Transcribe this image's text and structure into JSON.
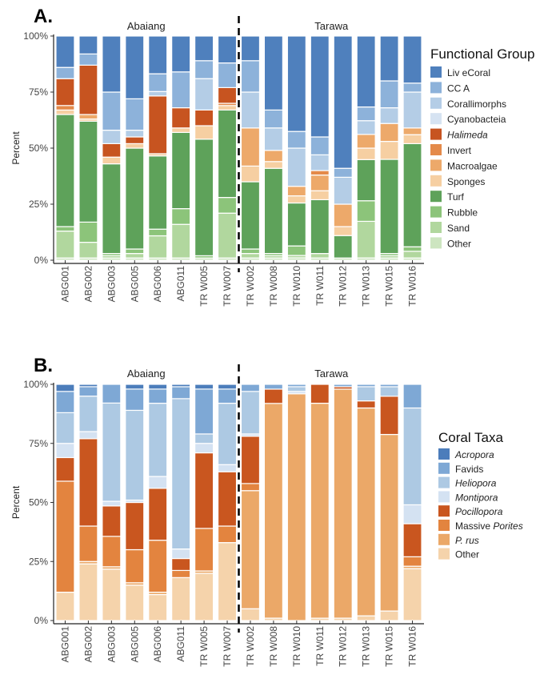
{
  "panels": [
    {
      "panel_label": "A.",
      "chart_data": {
        "type": "bar",
        "stacked": true,
        "categories": [
          "ABG001",
          "ABG002",
          "ABG003",
          "ABG005",
          "ABG006",
          "ABG011",
          "TR W005",
          "TR W007",
          "TR W002",
          "TR W008",
          "TR W010",
          "TR W011",
          "TR W012",
          "TR W013",
          "TR W015",
          "TR W016"
        ],
        "facets": [
          {
            "label": "Abaiang",
            "categories": [
              "ABG001",
              "ABG002",
              "ABG003",
              "ABG005",
              "ABG006",
              "ABG011",
              "TR W005",
              "TR W007"
            ]
          },
          {
            "label": "Tarawa",
            "categories": [
              "TR W002",
              "TR W008",
              "TR W010",
              "TR W011",
              "TR W012",
              "TR W013",
              "TR W015",
              "TR W016"
            ]
          }
        ],
        "ylabel": "Percent",
        "ylim": [
          0,
          100
        ],
        "yticks": [
          "0%",
          "25%",
          "50%",
          "75%",
          "100%"
        ],
        "grid": false,
        "legend_title": "Functional Group",
        "legend_position": "right",
        "series": [
          {
            "name": "Other",
            "color": "#cde5c0",
            "values": [
              1,
              1,
              1,
              1,
              1,
              1,
              1,
              1,
              1,
              1,
              1,
              1,
              1,
              1,
              1,
              1
            ]
          },
          {
            "name": "Sand",
            "color": "#b1d79e",
            "values": [
              12,
              7,
              1,
              2,
              10,
              15,
              0,
              20,
              2,
              1,
              1,
              2,
              0,
              16,
              1,
              3
            ]
          },
          {
            "name": "Rubble",
            "color": "#8cc47a",
            "values": [
              2,
              9,
              1,
              2,
              3,
              7,
              1,
              7,
              2,
              1,
              4,
              0,
              0,
              9,
              1,
              2
            ]
          },
          {
            "name": "Turf",
            "color": "#5ea25a",
            "values": [
              50,
              45,
              40,
              45,
              33,
              34,
              52,
              39,
              30,
              38,
              18,
              24,
              10,
              18,
              42,
              46
            ]
          },
          {
            "name": "Sponges",
            "color": "#f6cfa2",
            "values": [
              2,
              1,
              3,
              2,
              1,
              2,
              6,
              2,
              7,
              3,
              3,
              4,
              4,
              5,
              8,
              4
            ]
          },
          {
            "name": "Macroalgae",
            "color": "#eda96a",
            "values": [
              0,
              2,
              0,
              0,
              0,
              0,
              0,
              0,
              17,
              5,
              4,
              7,
              10,
              6,
              8,
              3
            ]
          },
          {
            "name": "Invert",
            "color": "#e48a4a",
            "values": [
              2,
              0,
              0,
              0,
              0,
              0,
              0,
              1,
              0,
              0,
              0,
              2,
              0,
              0,
              0,
              0
            ]
          },
          {
            "name": "Halimeda",
            "color": "#c75420",
            "values": [
              12,
              22,
              6,
              3,
              26,
              9,
              7,
              7,
              0,
              0,
              0,
              0,
              0,
              0,
              0,
              0
            ]
          },
          {
            "name": "Cyanobacteia",
            "color": "#d6e3f2",
            "values": [
              0,
              0,
              0,
              0,
              0,
              0,
              0,
              0,
              0,
              0,
              0,
              0,
              0,
              0,
              0,
              0
            ]
          },
          {
            "name": "Corallimorphs",
            "color": "#b4cde6",
            "values": [
              0,
              0,
              6,
              3,
              2,
              0,
              14,
              0,
              16,
              10,
              16,
              7,
              12,
              6,
              7,
              16
            ]
          },
          {
            "name": "CC A",
            "color": "#8db2da",
            "values": [
              5,
              5,
              17,
              14,
              8,
              16,
              8,
              11,
              14,
              8,
              7,
              8,
              4,
              6,
              12,
              4
            ]
          },
          {
            "name": "Liv eCoral",
            "color": "#4f80bd",
            "values": [
              14,
              8,
              25,
              28,
              17,
              16,
              11,
              12,
              11,
              33,
              40,
              45,
              59,
              31,
              20,
              21
            ]
          }
        ]
      }
    },
    {
      "panel_label": "B.",
      "chart_data": {
        "type": "bar",
        "stacked": true,
        "categories": [
          "ABG001",
          "ABG002",
          "ABG003",
          "ABG005",
          "ABG006",
          "ABG011",
          "TR W005",
          "TR W007",
          "TR W002",
          "TR W008",
          "TR W010",
          "TR W011",
          "TR W012",
          "TR W013",
          "TR W015",
          "TR W016"
        ],
        "facets": [
          {
            "label": "Abaiang",
            "categories": [
              "ABG001",
              "ABG002",
              "ABG003",
              "ABG005",
              "ABG006",
              "ABG011",
              "TR W005",
              "TR W007"
            ]
          },
          {
            "label": "Tarawa",
            "categories": [
              "TR W002",
              "TR W008",
              "TR W010",
              "TR W011",
              "TR W012",
              "TR W013",
              "TR W015",
              "TR W016"
            ]
          }
        ],
        "ylabel": "Percent",
        "ylim": [
          0,
          100
        ],
        "yticks": [
          "0%",
          "25%",
          "50%",
          "75%",
          "100%"
        ],
        "grid": false,
        "legend_title": "Coral Taxa",
        "legend_position": "right",
        "series": [
          {
            "name": "Other",
            "color": "#f5d3ab",
            "values": [
              12,
              24,
              22,
              15,
              11,
              18,
              20,
              33,
              5,
              1,
              0,
              1,
              1,
              2,
              4,
              22
            ]
          },
          {
            "name": "P. rus",
            "color": "#eba868",
            "values": [
              0,
              1,
              1,
              1,
              1,
              0,
              1,
              0,
              50,
              90,
              96,
              91,
              96,
              88,
              74,
              1
            ]
          },
          {
            "name": "Massive Porites",
            "color": "#e3843f",
            "values": [
              47,
              15,
              13,
              14,
              22,
              3,
              18,
              7,
              3,
              0,
              0,
              0,
              0,
              0,
              0,
              4
            ]
          },
          {
            "name": "Pocillopora",
            "color": "#c9561f",
            "values": [
              10,
              37,
              13,
              20,
              22,
              5,
              32,
              23,
              20,
              6,
              0,
              8,
              1,
              3,
              16,
              14
            ]
          },
          {
            "name": "Montipora",
            "color": "#d4e2f2",
            "values": [
              6,
              3,
              2,
              1,
              5,
              4,
              4,
              3,
              1,
              0,
              1,
              0,
              0,
              0,
              0,
              8
            ]
          },
          {
            "name": "Heliopora",
            "color": "#adc9e3",
            "values": [
              13,
              15,
              42,
              38,
              31,
              63,
              4,
              26,
              18,
              0,
              2,
              0,
              0,
              6,
              4,
              41
            ]
          },
          {
            "name": "Favids",
            "color": "#7ea8d5",
            "values": [
              9,
              4,
              8,
              9,
              6,
              5,
              19,
              6,
              3,
              2,
              1,
              0,
              1,
              1,
              1,
              10
            ]
          },
          {
            "name": "Acropora",
            "color": "#4c7dbb",
            "values": [
              3,
              1,
              0,
              2,
              2,
              1,
              2,
              2,
              0,
              0,
              0,
              0,
              0,
              0,
              0,
              0
            ]
          }
        ],
        "legend_italic": [
          "Acropora",
          "Heliopora",
          "Montipora",
          "Pocillopora",
          "P. rus"
        ],
        "legend_label_parts": {
          "Massive Porites": [
            {
              "text": "Massive ",
              "italic": false
            },
            {
              "text": "Porites",
              "italic": true
            }
          ]
        }
      }
    }
  ],
  "legend_italic_panel_a": [
    "Halimeda"
  ]
}
